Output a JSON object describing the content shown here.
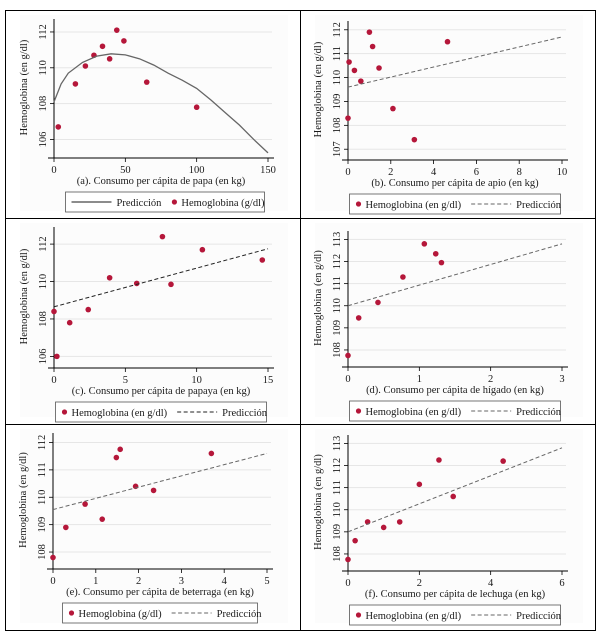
{
  "chart_data": [
    {
      "id": "a",
      "type": "scatter",
      "title": "",
      "xlabel": "(a). Consumo per cápita de papa (en kg)",
      "ylabel": "Hemoglobina (en g/dl)",
      "xlim": [
        0,
        150
      ],
      "ylim": [
        105.3,
        112.5
      ],
      "xticks": [
        0,
        50,
        100,
        150
      ],
      "yticks": [
        106,
        108,
        110,
        112
      ],
      "grid": true,
      "legend_position": "bottom",
      "legend_order": [
        "fit",
        "points"
      ],
      "legend": {
        "fit": "Predicción",
        "points": "Hemoglobina (g/dl)"
      },
      "fit_style": "solid",
      "series": [
        {
          "name": "Hemoglobina (g/dl)",
          "kind": "points",
          "x": [
            3,
            15,
            22,
            28,
            34,
            39,
            44,
            49,
            65,
            100
          ],
          "y": [
            106.7,
            109.1,
            110.1,
            110.7,
            111.2,
            110.5,
            112.1,
            111.5,
            109.2,
            107.8
          ]
        },
        {
          "name": "Predicción",
          "kind": "curve",
          "x": [
            0,
            5,
            10,
            20,
            30,
            40,
            50,
            60,
            70,
            80,
            90,
            100,
            110,
            120,
            130,
            140,
            150
          ],
          "y": [
            108.1,
            109.1,
            109.7,
            110.3,
            110.65,
            110.78,
            110.72,
            110.5,
            110.15,
            109.7,
            109.3,
            108.85,
            108.2,
            107.5,
            106.8,
            106.0,
            105.25
          ]
        }
      ]
    },
    {
      "id": "b",
      "type": "scatter",
      "xlabel": "(b). Consumo per cápita de apio (en kg)",
      "ylabel": "Hemoglobina (en g/dl)",
      "xlim": [
        0,
        10
      ],
      "ylim": [
        106.8,
        112.2
      ],
      "xticks": [
        0,
        2,
        4,
        6,
        8,
        10
      ],
      "yticks": [
        107,
        108,
        109,
        110,
        111,
        112
      ],
      "grid": true,
      "legend_position": "bottom",
      "legend_order": [
        "points",
        "fit"
      ],
      "legend": {
        "points": "Hemoglobina (en g/dl)",
        "fit": "Predicción"
      },
      "fit_style": "dashed",
      "series": [
        {
          "name": "Hemoglobina (en g/dl)",
          "kind": "points",
          "x": [
            0.0,
            0.05,
            0.3,
            0.6,
            1.0,
            1.15,
            1.45,
            2.1,
            3.1,
            4.65
          ],
          "y": [
            108.3,
            110.65,
            110.3,
            109.85,
            111.9,
            111.3,
            110.4,
            108.7,
            107.4,
            111.5
          ]
        },
        {
          "name": "Predicción",
          "kind": "line",
          "x": [
            0,
            10
          ],
          "y": [
            109.6,
            111.7
          ]
        }
      ]
    },
    {
      "id": "c",
      "type": "scatter",
      "xlabel": "(c). Consumo per cápita de papaya (en kg)",
      "ylabel": "Hemoglobina (en g/dl)",
      "xlim": [
        0,
        15
      ],
      "ylim": [
        105.7,
        112.7
      ],
      "xticks": [
        0,
        5,
        10,
        15
      ],
      "yticks": [
        106,
        108,
        110,
        112
      ],
      "grid": true,
      "legend_position": "bottom",
      "legend_order": [
        "points",
        "fit"
      ],
      "legend": {
        "points": "Hemoglobina (en g/dl)",
        "fit": "Predicción"
      },
      "fit_style": "dashed-dark",
      "series": [
        {
          "name": "Hemoglobina (en g/dl)",
          "kind": "points",
          "x": [
            0.0,
            0.2,
            1.1,
            2.4,
            3.9,
            5.8,
            7.6,
            8.2,
            10.4,
            14.6
          ],
          "y": [
            108.4,
            106.0,
            107.8,
            108.5,
            110.2,
            109.9,
            112.4,
            109.85,
            111.7,
            111.15
          ]
        },
        {
          "name": "Predicción",
          "kind": "line",
          "x": [
            0,
            15
          ],
          "y": [
            108.65,
            111.75
          ]
        }
      ]
    },
    {
      "id": "d",
      "type": "scatter",
      "xlabel": "(d). Consumo per cápita de hígado (en kg)",
      "ylabel": "Hemoglobina (en g/dl)",
      "xlim": [
        0,
        3
      ],
      "ylim": [
        107.5,
        113.2
      ],
      "xticks": [
        0,
        1,
        2,
        3
      ],
      "yticks": [
        108,
        109,
        110,
        111,
        112,
        113
      ],
      "grid": true,
      "legend_position": "bottom",
      "legend_order": [
        "points",
        "fit"
      ],
      "legend": {
        "points": "Hemoglobina (en g/dl)",
        "fit": "Predicción"
      },
      "fit_style": "dashed",
      "series": [
        {
          "name": "Hemoglobina (en g/dl)",
          "kind": "points",
          "x": [
            0.0,
            0.15,
            0.42,
            0.77,
            1.07,
            1.23,
            1.31
          ],
          "y": [
            107.75,
            109.45,
            110.15,
            111.3,
            112.8,
            112.35,
            111.95
          ]
        },
        {
          "name": "Predicción",
          "kind": "line",
          "x": [
            0,
            3
          ],
          "y": [
            110.0,
            112.8
          ]
        }
      ]
    },
    {
      "id": "e",
      "type": "scatter",
      "xlabel": "(e). Consumo per cápita de beterraga (en kg)",
      "ylabel": "Hemoglobina (en g/dl)",
      "xlim": [
        0,
        5
      ],
      "ylim": [
        107.6,
        112.2
      ],
      "xticks": [
        0,
        1,
        2,
        3,
        4,
        5
      ],
      "yticks": [
        108,
        109,
        110,
        111,
        112
      ],
      "grid": true,
      "legend_position": "bottom",
      "legend_order": [
        "points",
        "fit"
      ],
      "legend": {
        "points": "Hemoglobina (g/dl)",
        "fit": "Predicción"
      },
      "fit_style": "dashed",
      "series": [
        {
          "name": "Hemoglobina (g/dl)",
          "kind": "points",
          "x": [
            0.0,
            0.3,
            0.75,
            1.15,
            1.48,
            1.57,
            1.93,
            2.35,
            3.7
          ],
          "y": [
            107.8,
            108.9,
            109.75,
            109.2,
            111.45,
            111.75,
            110.4,
            110.25,
            111.6
          ]
        },
        {
          "name": "Predicción",
          "kind": "line",
          "x": [
            0,
            5
          ],
          "y": [
            109.55,
            111.6
          ]
        }
      ]
    },
    {
      "id": "f",
      "type": "scatter",
      "xlabel": "(f). Consumo per cápita de lechuga (en kg)",
      "ylabel": "Hemoglobina (en g/dl)",
      "xlim": [
        0,
        6
      ],
      "ylim": [
        107.5,
        113.2
      ],
      "xticks": [
        0,
        2,
        4,
        6
      ],
      "yticks": [
        108,
        109,
        110,
        111,
        112,
        113
      ],
      "grid": true,
      "legend_position": "bottom",
      "legend_order": [
        "points",
        "fit"
      ],
      "legend": {
        "points": "Hemoglobina (en g/dl)",
        "fit": "Predicción"
      },
      "fit_style": "dashed",
      "series": [
        {
          "name": "Hemoglobina (en g/dl)",
          "kind": "points",
          "x": [
            0.0,
            0.2,
            0.55,
            1.0,
            1.45,
            2.0,
            2.55,
            2.95,
            4.35
          ],
          "y": [
            107.75,
            108.6,
            109.45,
            109.2,
            109.45,
            111.15,
            112.25,
            110.6,
            112.2
          ]
        },
        {
          "name": "Predicción",
          "kind": "line",
          "x": [
            0,
            6
          ],
          "y": [
            109.0,
            112.8
          ]
        }
      ]
    }
  ],
  "colors": {
    "marker": "#b5173a",
    "fit_line": "#666666",
    "fit_line_dark": "#222222",
    "grid": "#e6e6e6",
    "axis": "#000000",
    "plot_bg": "#fcfcfc"
  }
}
